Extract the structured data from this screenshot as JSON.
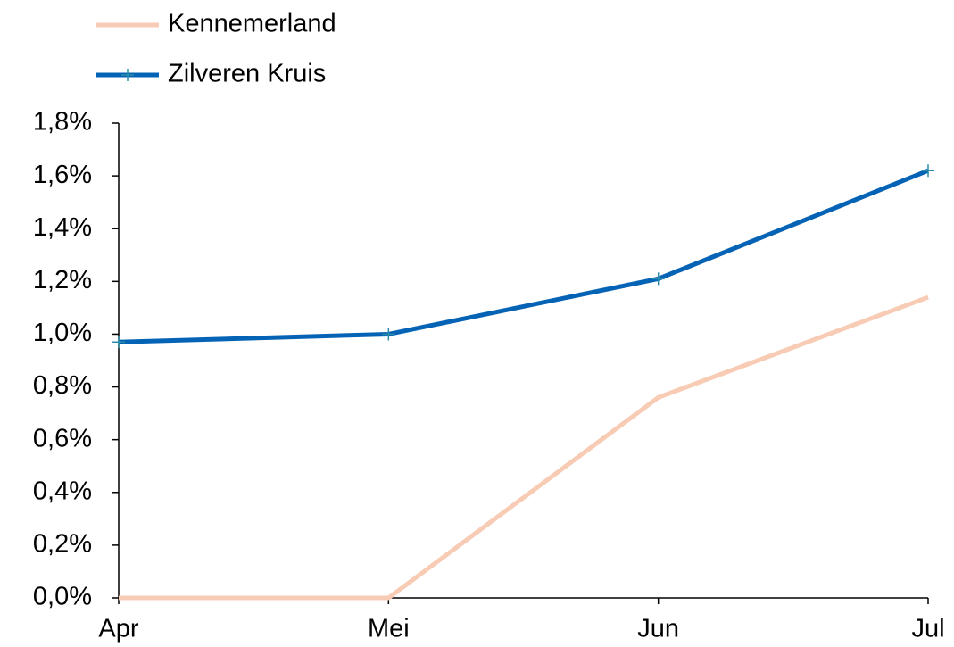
{
  "chart_data": {
    "type": "line",
    "categories": [
      "Apr",
      "Mei",
      "Jun",
      "Jul"
    ],
    "series": [
      {
        "name": "Kennemerland",
        "color": "#f8cbb4",
        "values": [
          0,
          0,
          0.76,
          1.14
        ]
      },
      {
        "name": "Zilveren Kruis",
        "color": "#0563b5",
        "marker": "+",
        "values": [
          0.97,
          1.0,
          1.21,
          1.62
        ]
      }
    ],
    "ylim": [
      0,
      1.8
    ],
    "yticks": [
      {
        "value": 0,
        "label": "0,0%"
      },
      {
        "value": 0.2,
        "label": "0,2%"
      },
      {
        "value": 0.4,
        "label": "0,4%"
      },
      {
        "value": 0.6,
        "label": "0,6%"
      },
      {
        "value": 0.8,
        "label": "0,8%"
      },
      {
        "value": 1.0,
        "label": "1,0%"
      },
      {
        "value": 1.2,
        "label": "1,2%"
      },
      {
        "value": 1.4,
        "label": "1,4%"
      },
      {
        "value": 1.6,
        "label": "1,6%"
      },
      {
        "value": 1.8,
        "label": "1,8%"
      }
    ],
    "grid": false,
    "legend": "top-left"
  }
}
